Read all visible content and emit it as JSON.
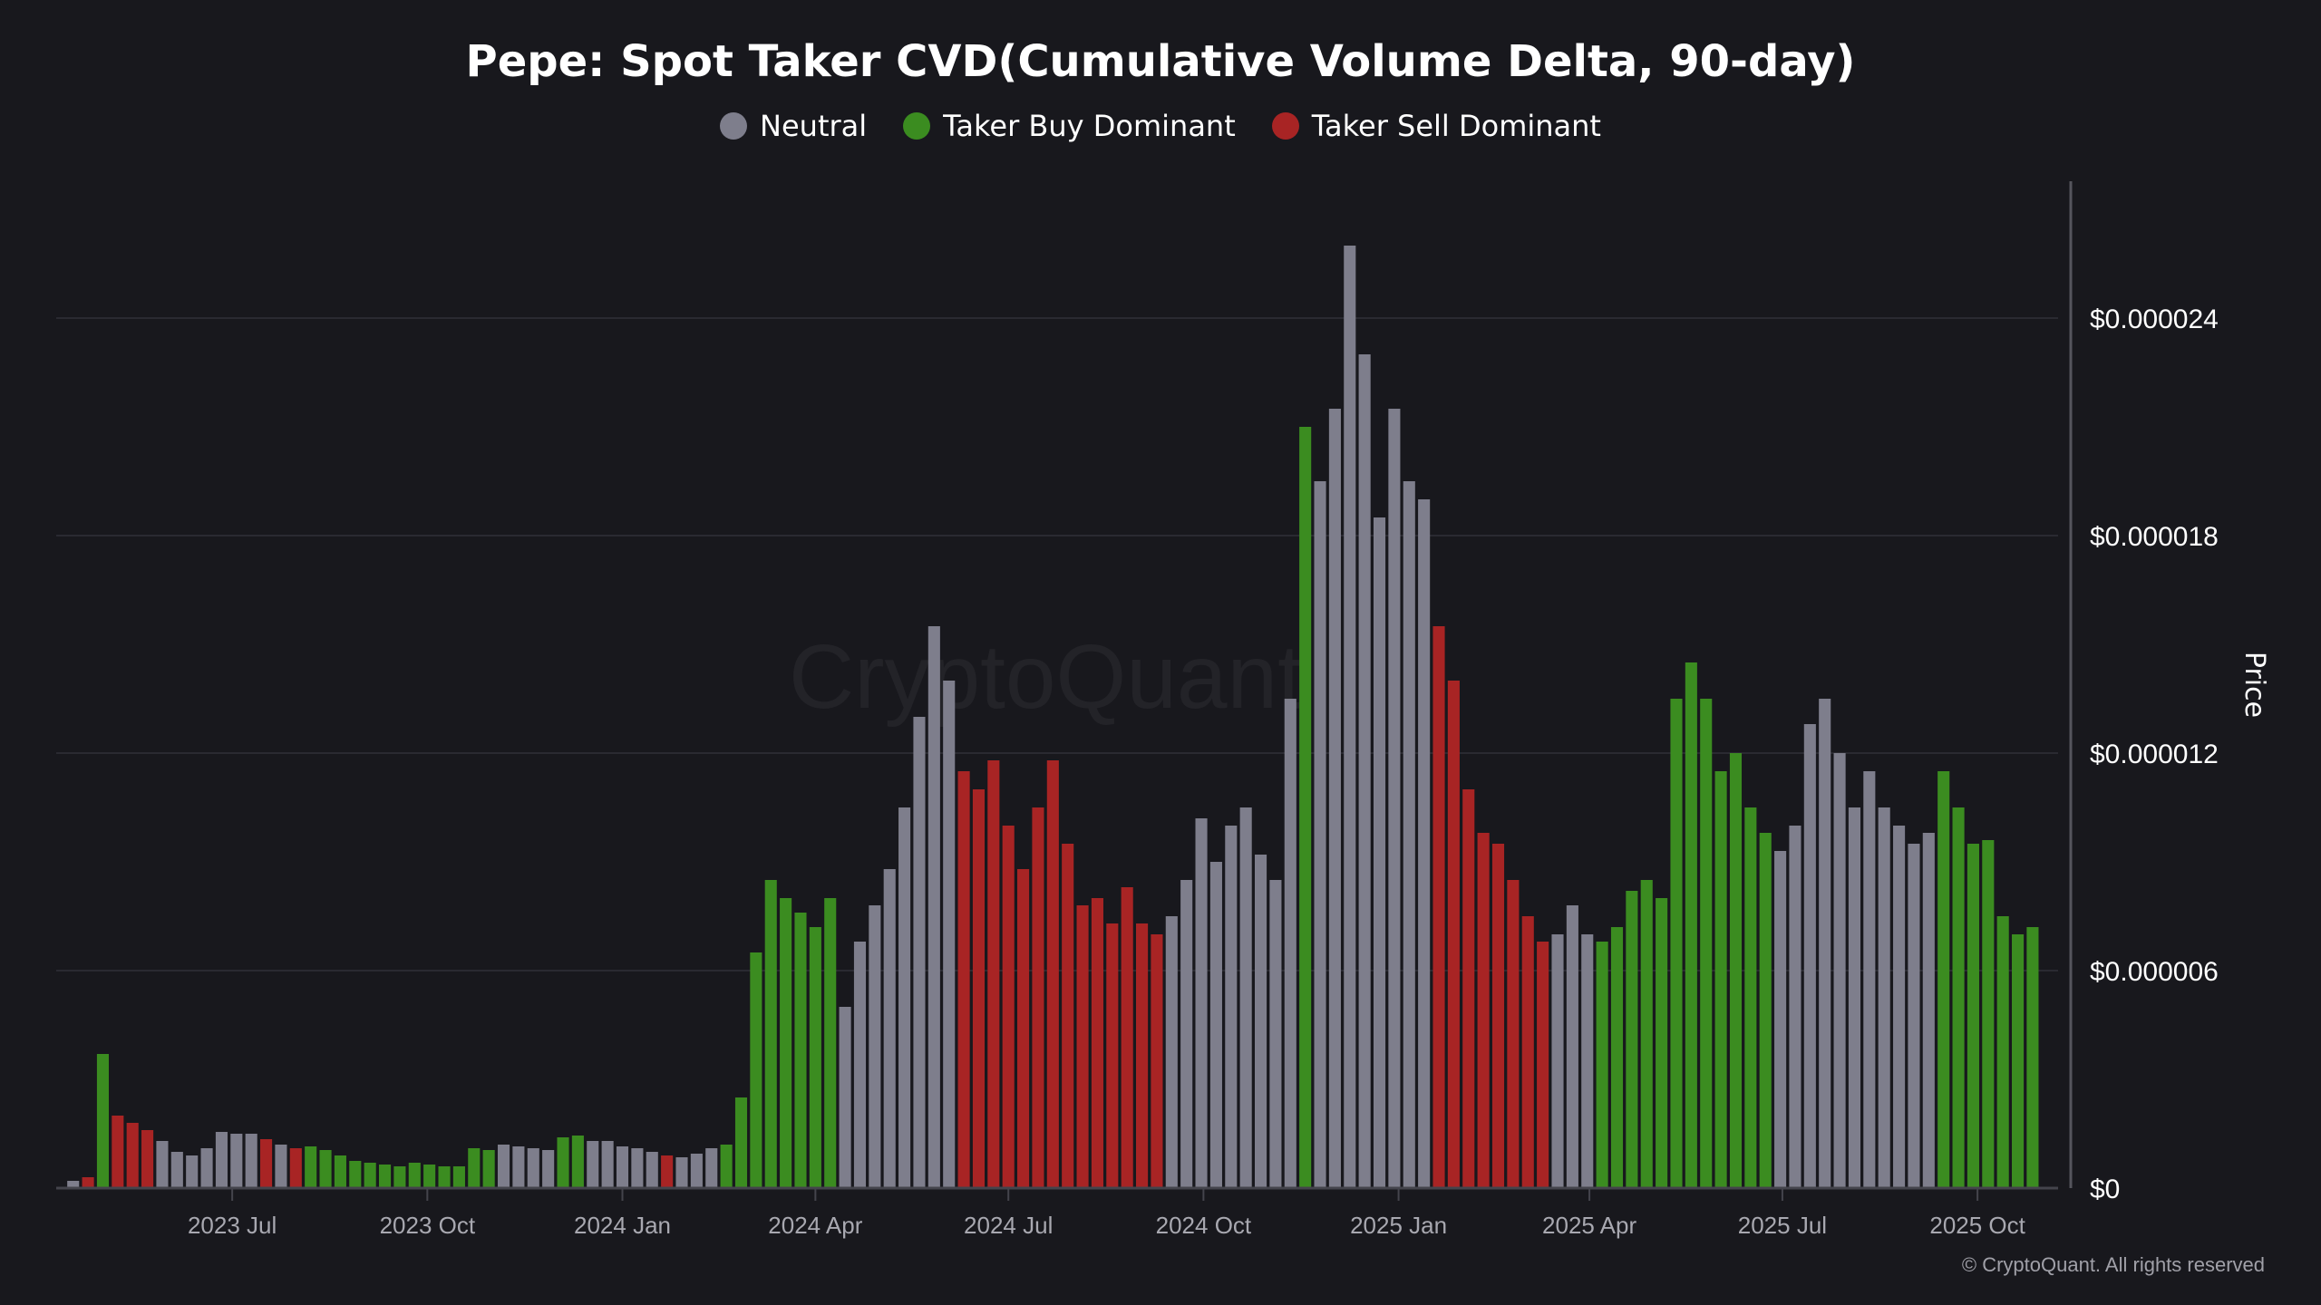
{
  "chart_data": {
    "type": "bar",
    "title": "Pepe: Spot Taker CVD(Cumulative Volume Delta, 90-day)",
    "ylabel": "Price",
    "ylim": [
      0,
      2.8e-05
    ],
    "xlim": [
      "2023-04-09",
      "2025-11-08"
    ],
    "grid": true,
    "legend_placement": "top-center",
    "watermark": "CryptoQuant",
    "copyright": "© CryptoQuant. All rights reserved",
    "yticks": [
      {
        "value": 0,
        "label": "$0"
      },
      {
        "value": 6e-06,
        "label": "$0.000006"
      },
      {
        "value": 1.2e-05,
        "label": "$0.000012"
      },
      {
        "value": 1.8e-05,
        "label": "$0.000018"
      },
      {
        "value": 2.4e-05,
        "label": "$0.000024"
      }
    ],
    "xticks": [
      {
        "date": "2023-07-01",
        "label": "2023 Jul"
      },
      {
        "date": "2023-10-01",
        "label": "2023 Oct"
      },
      {
        "date": "2024-01-01",
        "label": "2024 Jan"
      },
      {
        "date": "2024-04-01",
        "label": "2024 Apr"
      },
      {
        "date": "2024-07-01",
        "label": "2024 Jul"
      },
      {
        "date": "2024-10-01",
        "label": "2024 Oct"
      },
      {
        "date": "2025-01-01",
        "label": "2025 Jan"
      },
      {
        "date": "2025-04-01",
        "label": "2025 Apr"
      },
      {
        "date": "2025-07-01",
        "label": "2025 Jul"
      },
      {
        "date": "2025-10-01",
        "label": "2025 Oct"
      }
    ],
    "legend": [
      {
        "key": "N",
        "label": "Neutral",
        "color": "#7e7e8c"
      },
      {
        "key": "B",
        "label": "Taker Buy Dominant",
        "color": "#3b8c20"
      },
      {
        "key": "S",
        "label": "Taker Sell Dominant",
        "color": "#a82424"
      }
    ],
    "price_unit": "millionths of USD",
    "x": [
      "2023-04-17",
      "2023-04-24",
      "2023-05-01",
      "2023-05-08",
      "2023-05-15",
      "2023-05-22",
      "2023-05-29",
      "2023-06-05",
      "2023-06-12",
      "2023-06-19",
      "2023-06-26",
      "2023-07-03",
      "2023-07-10",
      "2023-07-17",
      "2023-07-24",
      "2023-07-31",
      "2023-08-07",
      "2023-08-14",
      "2023-08-21",
      "2023-08-28",
      "2023-09-04",
      "2023-09-11",
      "2023-09-18",
      "2023-09-25",
      "2023-10-02",
      "2023-10-09",
      "2023-10-16",
      "2023-10-23",
      "2023-10-30",
      "2023-11-06",
      "2023-11-13",
      "2023-11-20",
      "2023-11-27",
      "2023-12-04",
      "2023-12-11",
      "2023-12-18",
      "2023-12-25",
      "2024-01-01",
      "2024-01-08",
      "2024-01-15",
      "2024-01-22",
      "2024-01-29",
      "2024-02-05",
      "2024-02-12",
      "2024-02-19",
      "2024-02-26",
      "2024-03-04",
      "2024-03-11",
      "2024-03-18",
      "2024-03-25",
      "2024-04-01",
      "2024-04-08",
      "2024-04-15",
      "2024-04-22",
      "2024-04-29",
      "2024-05-06",
      "2024-05-13",
      "2024-05-20",
      "2024-05-27",
      "2024-06-03",
      "2024-06-10",
      "2024-06-17",
      "2024-06-24",
      "2024-07-01",
      "2024-07-08",
      "2024-07-15",
      "2024-07-22",
      "2024-07-29",
      "2024-08-05",
      "2024-08-12",
      "2024-08-19",
      "2024-08-26",
      "2024-09-02",
      "2024-09-09",
      "2024-09-16",
      "2024-09-23",
      "2024-09-30",
      "2024-10-07",
      "2024-10-14",
      "2024-10-21",
      "2024-10-28",
      "2024-11-04",
      "2024-11-11",
      "2024-11-18",
      "2024-11-25",
      "2024-12-02",
      "2024-12-09",
      "2024-12-16",
      "2024-12-23",
      "2024-12-30",
      "2025-01-06",
      "2025-01-13",
      "2025-01-20",
      "2025-01-27",
      "2025-02-03",
      "2025-02-10",
      "2025-02-17",
      "2025-02-24",
      "2025-03-03",
      "2025-03-10",
      "2025-03-17",
      "2025-03-24",
      "2025-03-31",
      "2025-04-07",
      "2025-04-14",
      "2025-04-21",
      "2025-04-28",
      "2025-05-05",
      "2025-05-12",
      "2025-05-19",
      "2025-05-26",
      "2025-06-02",
      "2025-06-09",
      "2025-06-16",
      "2025-06-23",
      "2025-06-30",
      "2025-07-07",
      "2025-07-14",
      "2025-07-21",
      "2025-07-28",
      "2025-08-04",
      "2025-08-11",
      "2025-08-18",
      "2025-08-25",
      "2025-09-01",
      "2025-09-08",
      "2025-09-15",
      "2025-09-22",
      "2025-09-29",
      "2025-10-06",
      "2025-10-13",
      "2025-10-20",
      "2025-10-27"
    ],
    "values": [
      0.2,
      0.3,
      3.7,
      2.0,
      1.8,
      1.6,
      1.3,
      1.0,
      0.9,
      1.1,
      1.55,
      1.5,
      1.5,
      1.35,
      1.2,
      1.1,
      1.15,
      1.05,
      0.9,
      0.75,
      0.7,
      0.65,
      0.6,
      0.7,
      0.65,
      0.6,
      0.6,
      1.1,
      1.05,
      1.2,
      1.15,
      1.1,
      1.05,
      1.4,
      1.45,
      1.3,
      1.3,
      1.15,
      1.1,
      1.0,
      0.9,
      0.85,
      0.95,
      1.1,
      1.2,
      2.5,
      6.5,
      8.5,
      8.0,
      7.6,
      7.2,
      8.0,
      5.0,
      6.8,
      7.8,
      8.8,
      10.5,
      13.0,
      15.5,
      14.0,
      11.5,
      11.0,
      11.8,
      10.0,
      8.8,
      10.5,
      11.8,
      9.5,
      7.8,
      8.0,
      7.3,
      8.3,
      7.3,
      7.0,
      7.5,
      8.5,
      10.2,
      9.0,
      10.0,
      10.5,
      9.2,
      8.5,
      13.5,
      21.0,
      19.5,
      21.5,
      26.0,
      23.0,
      18.5,
      21.5,
      19.5,
      19.0,
      15.5,
      14.0,
      11.0,
      9.8,
      9.5,
      8.5,
      7.5,
      6.8,
      7.0,
      7.8,
      7.0,
      6.8,
      7.2,
      8.2,
      8.5,
      8.0,
      13.5,
      14.5,
      13.5,
      11.5,
      12.0,
      10.5,
      9.8,
      9.3,
      10.0,
      12.8,
      13.5,
      12.0,
      10.5,
      11.5,
      10.5,
      10.0,
      9.5,
      9.8,
      11.5,
      10.5,
      9.5,
      9.6,
      7.5,
      7.0,
      7.2
    ],
    "regime": [
      "N",
      "S",
      "B",
      "S",
      "S",
      "S",
      "N",
      "N",
      "N",
      "N",
      "N",
      "N",
      "N",
      "S",
      "N",
      "S",
      "B",
      "B",
      "B",
      "B",
      "B",
      "B",
      "B",
      "B",
      "B",
      "B",
      "B",
      "B",
      "B",
      "N",
      "N",
      "N",
      "N",
      "B",
      "B",
      "N",
      "N",
      "N",
      "N",
      "N",
      "S",
      "N",
      "N",
      "N",
      "B",
      "B",
      "B",
      "B",
      "B",
      "B",
      "B",
      "B",
      "N",
      "N",
      "N",
      "N",
      "N",
      "N",
      "N",
      "N",
      "S",
      "S",
      "S",
      "S",
      "S",
      "S",
      "S",
      "S",
      "S",
      "S",
      "S",
      "S",
      "S",
      "S",
      "N",
      "N",
      "N",
      "N",
      "N",
      "N",
      "N",
      "N",
      "N",
      "B",
      "N",
      "N",
      "N",
      "N",
      "N",
      "N",
      "N",
      "N",
      "S",
      "S",
      "S",
      "S",
      "S",
      "S",
      "S",
      "S",
      "N",
      "N",
      "N",
      "B",
      "B",
      "B",
      "B",
      "B",
      "B",
      "B",
      "B",
      "B",
      "B",
      "B",
      "B",
      "N",
      "N",
      "N",
      "N",
      "N",
      "N",
      "N",
      "N",
      "N",
      "N",
      "N",
      "B",
      "B",
      "B",
      "B",
      "B",
      "B",
      "B"
    ]
  }
}
